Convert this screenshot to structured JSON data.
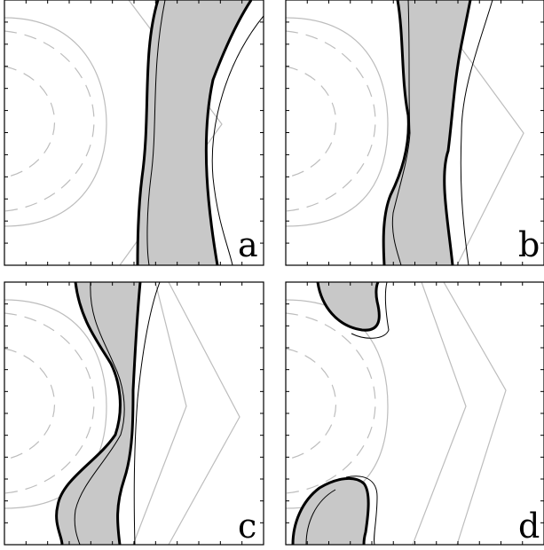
{
  "panels": [
    {
      "id": "a",
      "label": "a"
    },
    {
      "id": "b",
      "label": "b"
    },
    {
      "id": "c",
      "label": "c"
    },
    {
      "id": "d",
      "label": "d"
    }
  ]
}
